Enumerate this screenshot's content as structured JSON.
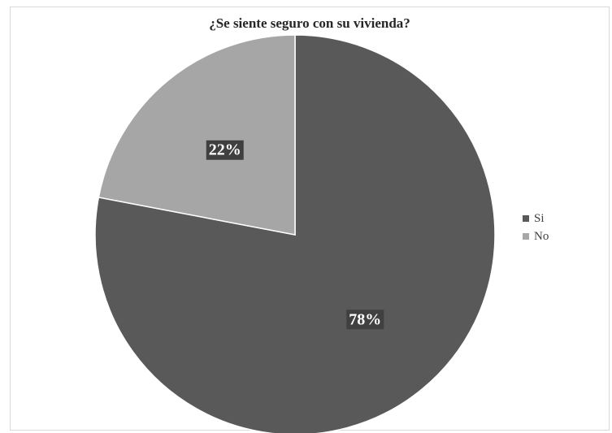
{
  "chart_data": {
    "type": "pie",
    "title": "¿Se siente seguro con su vivienda?",
    "categories": [
      "Si",
      "No"
    ],
    "values": [
      78,
      22
    ],
    "labels": [
      "78%",
      "22%"
    ],
    "colors": [
      "#595959",
      "#a6a6a6"
    ],
    "legend_position": "right",
    "start_angle_deg": 0,
    "direction": "clockwise"
  }
}
